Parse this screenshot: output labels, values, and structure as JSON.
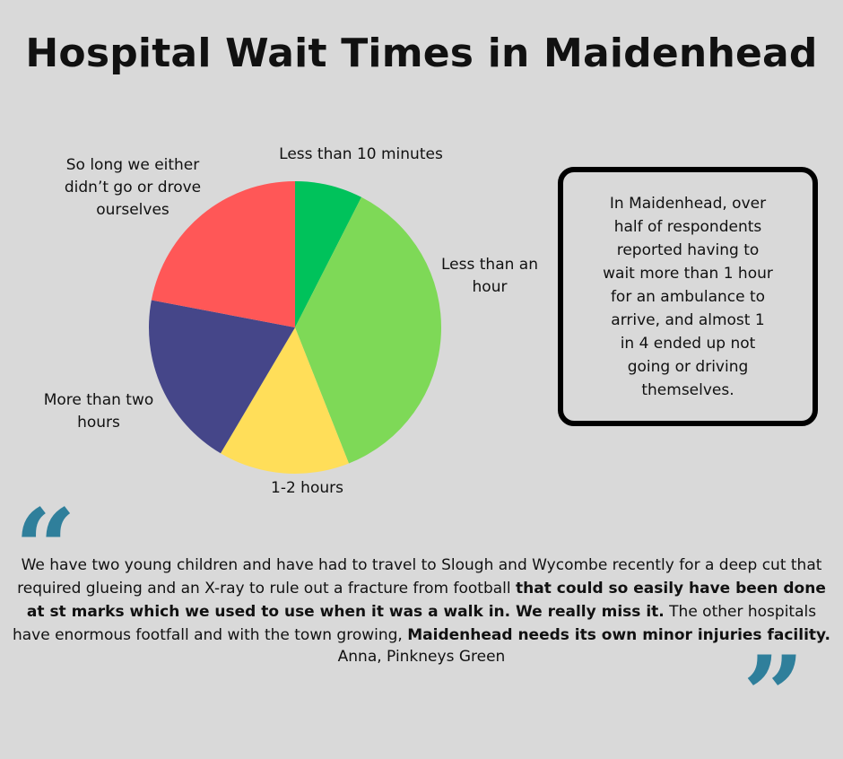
{
  "title": "Hospital Wait Times in Maidenhead",
  "chart_data": {
    "type": "pie",
    "title": "Hospital Wait Times in Maidenhead",
    "slices": [
      {
        "label": "Less than 10 minutes",
        "value": 7.5,
        "color": "#00c25b"
      },
      {
        "label": "Less than an hour",
        "value": 36.5,
        "color": "#7ed957"
      },
      {
        "label": "1-2 hours",
        "value": 14.5,
        "color": "#ffde59"
      },
      {
        "label": "More than two hours",
        "value": 19.5,
        "color": "#454689"
      },
      {
        "label": "So long we either didn’t go or drove ourselves",
        "value": 22,
        "color": "#ff5757"
      }
    ]
  },
  "labels": {
    "less10": "Less than 10 minutes",
    "lessHour": "Less than an hour",
    "oneTwo": "1-2 hours",
    "moreTwo": "More than two hours",
    "solong": "So long we either didn’t go or drove ourselves"
  },
  "callout": "In Maidenhead, over half of respondents reported having to wait more than 1 hour for an ambulance to arrive, and almost 1 in 4 ended up not going or driving themselves.",
  "quote": {
    "part1": "We have two young children and have had to travel to Slough and Wycombe recently for a deep cut that required glueing and an X-ray to rule out a fracture from football ",
    "bold1": "that could so easily have been done at st marks which we used to use when it was a walk in. We really miss it.",
    "part2": " The other hospitals have enormous footfall and with the town growing, ",
    "bold2": "Maidenhead needs its own minor injuries facility.",
    "attribution": "Anna, Pinkneys Green"
  },
  "quote_marks": {
    "open": "“",
    "close": "”"
  },
  "colors": {
    "background": "#d9d9d9",
    "quote_mark": "#2f7f9b"
  }
}
